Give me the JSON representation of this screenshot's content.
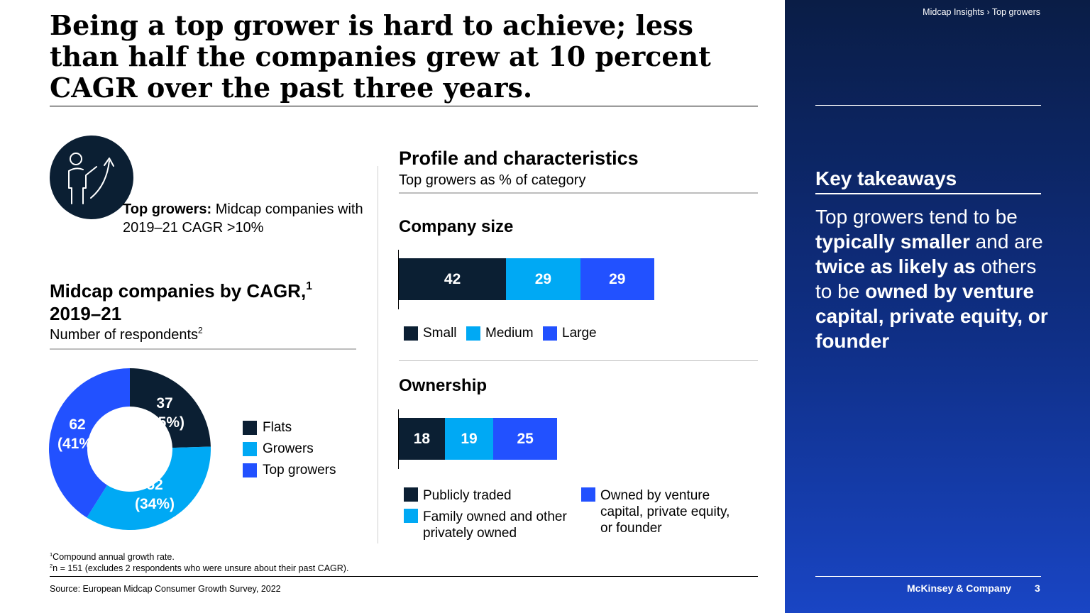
{
  "header": {
    "title": "Being a top grower is hard to achieve; less than half the companies grew at 10 percent CAGR over the past three years.",
    "breadcrumb": "Midcap Insights › Top growers"
  },
  "definition": {
    "icon": "person-growth-arrow-icon",
    "term": "Top growers:",
    "text": " Midcap companies with 2019–21 CAGR >10%"
  },
  "footer": {
    "footnote1_mark": "1",
    "footnote1": "Compound annual growth rate.",
    "footnote2_mark": "2",
    "footnote2": "n = 151 (excludes 2 respondents who were unsure about their past CAGR).",
    "source": "Source: European Midcap Consumer Growth Survey, 2022",
    "brand": "McKinsey & Company",
    "page": "3"
  },
  "takeaways": {
    "title": "Key takeaways",
    "parts": [
      {
        "text": "Top growers tend to be ",
        "bold": false
      },
      {
        "text": "typically smaller",
        "bold": true
      },
      {
        "text": " and are ",
        "bold": false
      },
      {
        "text": "twice as likely as",
        "bold": true
      },
      {
        "text": " others to be ",
        "bold": false
      },
      {
        "text": "owned by venture capital, private equity, or founder",
        "bold": true
      }
    ]
  },
  "colors": {
    "dark": "#0b1f33",
    "cyan": "#00a9f4",
    "blue": "#2251ff",
    "panel_top": "#0a1d46",
    "panel_bottom": "#1945c4"
  },
  "chart_data": [
    {
      "type": "pie",
      "title": "Midcap companies by CAGR,",
      "title_mark": "1",
      "title_line2": "2019–21",
      "subtitle": "Number of respondents",
      "subtitle_mark": "2",
      "legend_position": "right",
      "slices": [
        {
          "name": "Flats",
          "value": 37,
          "label": "37",
          "pct_label": "(25%)",
          "color": "#0b1f33"
        },
        {
          "name": "Growers",
          "value": 52,
          "label": "52",
          "pct_label": "(34%)",
          "color": "#00a9f4"
        },
        {
          "name": "Top growers",
          "value": 62,
          "label": "62",
          "pct_label": "(41%)",
          "color": "#2251ff"
        }
      ]
    },
    {
      "type": "bar",
      "orientation": "horizontal-stacked",
      "title": "Profile and characteristics",
      "subtitle": "Top growers as % of category",
      "panels": [
        {
          "title": "Company size",
          "series": [
            {
              "name": "Small",
              "value": 42,
              "color": "#0b1f33"
            },
            {
              "name": "Medium",
              "value": 29,
              "color": "#00a9f4"
            },
            {
              "name": "Large",
              "value": 29,
              "color": "#2251ff"
            }
          ]
        },
        {
          "title": "Ownership",
          "series": [
            {
              "name": "Publicly traded",
              "value": 18,
              "color": "#0b1f33"
            },
            {
              "name": "Family owned and other privately owned",
              "value": 19,
              "color": "#00a9f4"
            },
            {
              "name": "Owned by venture capital, private equity, or founder",
              "value": 25,
              "color": "#2251ff"
            }
          ]
        }
      ]
    }
  ]
}
